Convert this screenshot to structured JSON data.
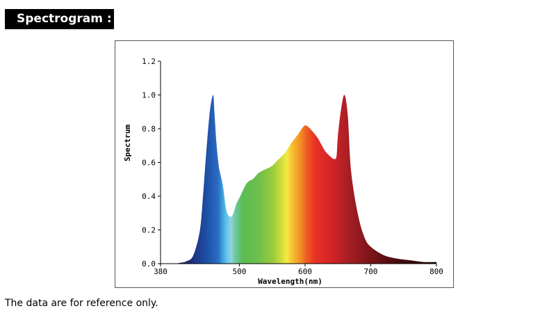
{
  "header": {
    "title": "Spectrogram :"
  },
  "footnote": "The data are for reference only.",
  "chart_data": {
    "type": "area",
    "title": "",
    "xlabel": "Wavelength(nm)",
    "ylabel": "Spectrum",
    "xlim": [
      380,
      800
    ],
    "ylim": [
      0,
      1.2
    ],
    "x_ticks": [
      380,
      500,
      600,
      700,
      800
    ],
    "y_ticks": [
      "0.0",
      "0.2",
      "0.4",
      "0.6",
      "0.8",
      "1.0",
      "1.2"
    ],
    "grid": false,
    "legend": "none",
    "series": [
      {
        "x": [
          380,
          400,
          410,
          420,
          430,
          440,
          445,
          450,
          455,
          460,
          462,
          465,
          468,
          470,
          475,
          480,
          485,
          490,
          495,
          500,
          505,
          510,
          515,
          520,
          525,
          530,
          540,
          550,
          560,
          570,
          580,
          590,
          595,
          600,
          605,
          610,
          620,
          630,
          640,
          645,
          648,
          650,
          655,
          660,
          665,
          670,
          680,
          690,
          700,
          720,
          740,
          760,
          780,
          800
        ],
        "y": [
          0.0,
          0.0,
          0.005,
          0.015,
          0.05,
          0.2,
          0.42,
          0.68,
          0.9,
          1.0,
          0.9,
          0.72,
          0.6,
          0.55,
          0.46,
          0.32,
          0.28,
          0.29,
          0.35,
          0.39,
          0.43,
          0.47,
          0.49,
          0.5,
          0.52,
          0.54,
          0.56,
          0.58,
          0.62,
          0.66,
          0.72,
          0.77,
          0.8,
          0.82,
          0.81,
          0.79,
          0.74,
          0.67,
          0.63,
          0.62,
          0.64,
          0.76,
          0.92,
          1.0,
          0.88,
          0.55,
          0.3,
          0.16,
          0.1,
          0.05,
          0.03,
          0.02,
          0.01,
          0.01
        ]
      }
    ]
  },
  "colors": {
    "spectrum_stops": [
      {
        "nm": 380,
        "color": "#140c32"
      },
      {
        "nm": 425,
        "color": "#1d2c78"
      },
      {
        "nm": 450,
        "color": "#1e4fa6"
      },
      {
        "nm": 468,
        "color": "#2b6ec4"
      },
      {
        "nm": 474,
        "color": "#3aa0dc"
      },
      {
        "nm": 480,
        "color": "#5ec2ee"
      },
      {
        "nm": 487,
        "color": "#8fd4e0"
      },
      {
        "nm": 494,
        "color": "#6cc7a0"
      },
      {
        "nm": 505,
        "color": "#5cbc55"
      },
      {
        "nm": 530,
        "color": "#6ec04a"
      },
      {
        "nm": 552,
        "color": "#9ccc3e"
      },
      {
        "nm": 565,
        "color": "#d6de3a"
      },
      {
        "nm": 572,
        "color": "#f3ea44"
      },
      {
        "nm": 580,
        "color": "#f6c230"
      },
      {
        "nm": 592,
        "color": "#f29326"
      },
      {
        "nm": 602,
        "color": "#ef5f22"
      },
      {
        "nm": 615,
        "color": "#e83224"
      },
      {
        "nm": 640,
        "color": "#d42429"
      },
      {
        "nm": 665,
        "color": "#a81f25"
      },
      {
        "nm": 700,
        "color": "#7a1418"
      },
      {
        "nm": 740,
        "color": "#4a0c0e"
      },
      {
        "nm": 800,
        "color": "#1a0606"
      }
    ]
  }
}
